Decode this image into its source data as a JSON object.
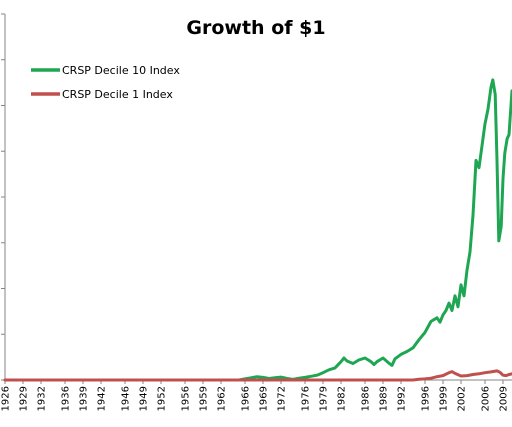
{
  "chart_data": {
    "type": "line",
    "title": "Growth of $1",
    "xlabel": "",
    "ylabel": "",
    "x_tick_labels": [
      "1926",
      "1929",
      "1932",
      "1936",
      "1939",
      "1942",
      "1946",
      "1949",
      "1952",
      "1956",
      "1959",
      "1962",
      "1966",
      "1969",
      "1972",
      "1976",
      "1979",
      "1982",
      "1986",
      "1989",
      "1992",
      "1996",
      "1999",
      "2002",
      "2006",
      "2009"
    ],
    "xlim": [
      1926,
      2010.5
    ],
    "ylim": [
      0,
      1
    ],
    "grid": false,
    "legend_position": "top-left",
    "series": [
      {
        "name": "CRSP Decile 10 Index",
        "color": "#1fa653",
        "x": [
          1965.0,
          1966.0,
          1967.0,
          1968.0,
          1969.0,
          1970.0,
          1971.0,
          1972.0,
          1973.0,
          1974.0,
          1975.0,
          1976.0,
          1977.0,
          1978.0,
          1979.0,
          1980.0,
          1981.0,
          1982.0,
          1982.5,
          1983.0,
          1984.0,
          1985.0,
          1986.0,
          1987.0,
          1987.5,
          1988.0,
          1989.0,
          1990.0,
          1990.5,
          1991.0,
          1992.0,
          1993.0,
          1994.0,
          1995.0,
          1996.0,
          1997.0,
          1998.0,
          1998.5,
          1999.0,
          1999.5,
          2000.0,
          2000.5,
          2001.0,
          2001.5,
          2002.0,
          2002.5,
          2003.0,
          2003.5,
          2004.0,
          2004.5,
          2005.0,
          2005.5,
          2006.0,
          2006.5,
          2007.0,
          2007.3,
          2007.7,
          2008.0,
          2008.3,
          2008.7,
          2009.0,
          2009.3,
          2009.7,
          2010.0,
          2010.5
        ],
        "values": [
          0.0,
          0.003,
          0.006,
          0.009,
          0.007,
          0.004,
          0.006,
          0.008,
          0.004,
          0.002,
          0.005,
          0.007,
          0.01,
          0.013,
          0.02,
          0.028,
          0.033,
          0.05,
          0.06,
          0.052,
          0.045,
          0.055,
          0.06,
          0.05,
          0.042,
          0.05,
          0.06,
          0.046,
          0.04,
          0.058,
          0.07,
          0.078,
          0.088,
          0.11,
          0.13,
          0.16,
          0.17,
          0.158,
          0.178,
          0.19,
          0.21,
          0.19,
          0.23,
          0.2,
          0.26,
          0.23,
          0.3,
          0.35,
          0.45,
          0.6,
          0.58,
          0.64,
          0.7,
          0.74,
          0.8,
          0.82,
          0.78,
          0.6,
          0.38,
          0.42,
          0.55,
          0.62,
          0.66,
          0.67,
          0.79
        ]
      },
      {
        "name": "CRSP Decile 1 Index",
        "color": "#c0504d",
        "x": [
          1926.0,
          1994.0,
          1995.0,
          1996.0,
          1997.0,
          1998.0,
          1999.0,
          1999.5,
          2000.0,
          2000.5,
          2001.0,
          2002.0,
          2003.0,
          2004.0,
          2005.0,
          2006.0,
          2007.0,
          2008.0,
          2008.5,
          2009.0,
          2009.5,
          2010.0,
          2010.5
        ],
        "values": [
          0.0,
          0.0,
          0.002,
          0.003,
          0.005,
          0.009,
          0.012,
          0.016,
          0.02,
          0.023,
          0.018,
          0.011,
          0.012,
          0.015,
          0.017,
          0.02,
          0.022,
          0.025,
          0.021,
          0.013,
          0.012,
          0.015,
          0.017
        ]
      }
    ]
  }
}
